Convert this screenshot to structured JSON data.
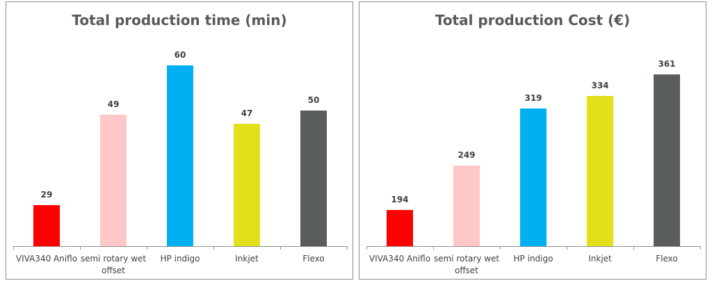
{
  "chart_data": [
    {
      "type": "bar",
      "title": "Total production time (min)",
      "categories": [
        "VIVA340 Aniflo",
        "semi rotary wet offset",
        "HP indigo",
        "Inkjet",
        "Flexo"
      ],
      "values": [
        29,
        49,
        60,
        47,
        50
      ],
      "colors": [
        "#ff0000",
        "#ffc7c7",
        "#00b0f0",
        "#e2e01a",
        "#595d5d"
      ],
      "ylim": [
        20,
        65
      ]
    },
    {
      "type": "bar",
      "title": "Total production Cost (€)",
      "categories": [
        "VIVA340 Aniflo",
        "semi rotary wet offset",
        "HP indigo",
        "Inkjet",
        "Flexo"
      ],
      "values": [
        194,
        249,
        319,
        334,
        361
      ],
      "colors": [
        "#ff0000",
        "#ffc7c7",
        "#00b0f0",
        "#e2e01a",
        "#595d5d"
      ],
      "ylim": [
        150,
        400
      ]
    }
  ]
}
